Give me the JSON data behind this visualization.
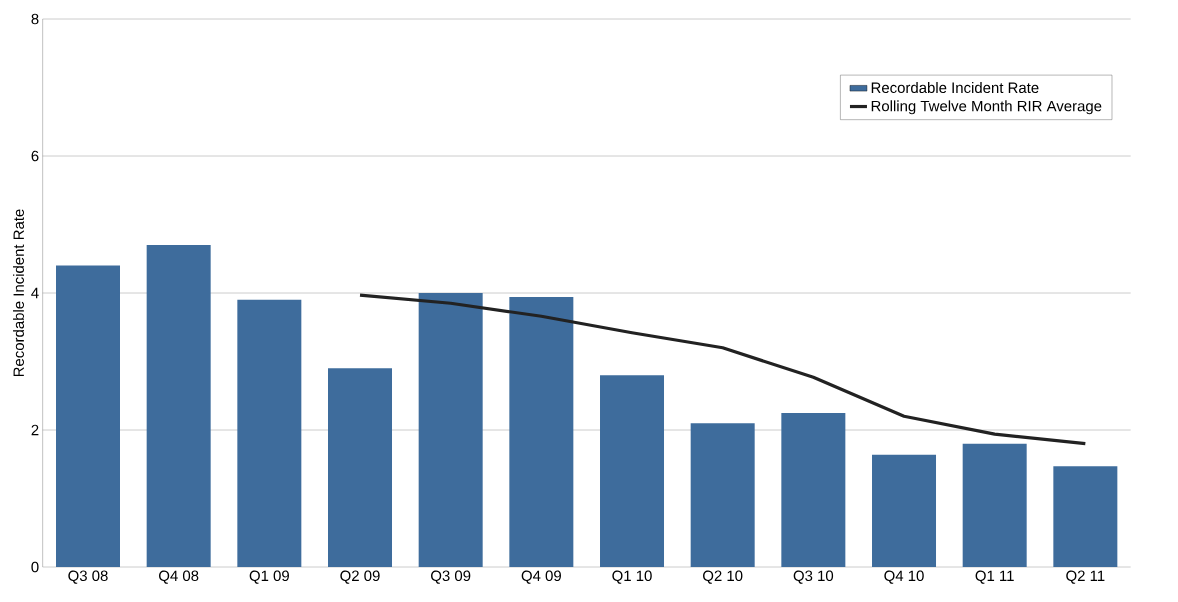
{
  "chart_data": {
    "type": "bar",
    "ylabel": "Recordable Incident Rate",
    "categories": [
      "Q3 08",
      "Q4 08",
      "Q1 09",
      "Q2 09",
      "Q3 09",
      "Q4 09",
      "Q1 10",
      "Q2 10",
      "Q3 10",
      "Q4 10",
      "Q1 11",
      "Q2 11"
    ],
    "series": [
      {
        "name": "Recordable Incident Rate",
        "color": "#3e6c9c",
        "values": [
          4.4,
          4.7,
          3.9,
          2.9,
          4.0,
          3.94,
          2.8,
          2.1,
          2.25,
          1.64,
          1.8,
          1.47
        ]
      },
      {
        "name": "Rolling Twelve Month RIR Average",
        "type": "line",
        "color": "#222222",
        "values": [
          null,
          null,
          null,
          3.97,
          3.85,
          3.66,
          3.42,
          3.2,
          2.77,
          2.2,
          1.94,
          1.8
        ]
      }
    ],
    "ylim": [
      0,
      8
    ],
    "yticks": [
      0,
      2,
      4,
      6,
      8
    ],
    "grid": "y",
    "legend": "top right"
  }
}
